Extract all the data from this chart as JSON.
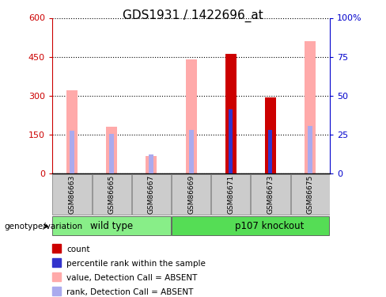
{
  "title": "GDS1931 / 1422696_at",
  "samples": [
    "GSM86663",
    "GSM86665",
    "GSM86667",
    "GSM86669",
    "GSM86671",
    "GSM86673",
    "GSM86675"
  ],
  "value_absent": [
    320,
    180,
    68,
    440,
    null,
    null,
    510
  ],
  "rank_absent": [
    165,
    155,
    75,
    168,
    null,
    null,
    183
  ],
  "count": [
    null,
    null,
    null,
    null,
    460,
    295,
    null
  ],
  "percentile": [
    null,
    null,
    null,
    null,
    248,
    168,
    null
  ],
  "ylim_left": [
    0,
    600
  ],
  "ylim_right": [
    0,
    100
  ],
  "yticks_left": [
    0,
    150,
    300,
    450,
    600
  ],
  "ytick_labels_left": [
    "0",
    "150",
    "300",
    "450",
    "600"
  ],
  "yticks_right": [
    0,
    25,
    50,
    75,
    100
  ],
  "ytick_labels_right": [
    "0",
    "25",
    "50",
    "75",
    "100%"
  ],
  "color_count": "#cc0000",
  "color_percentile": "#3333cc",
  "color_value_absent": "#ffaaaa",
  "color_rank_absent": "#aaaaee",
  "color_wt_bg": "#88ee88",
  "color_ko_bg": "#55dd55",
  "color_label_bg": "#cccccc",
  "value_bar_width": 0.28,
  "rank_bar_width": 0.12,
  "count_bar_width": 0.28,
  "percentile_bar_width": 0.1
}
